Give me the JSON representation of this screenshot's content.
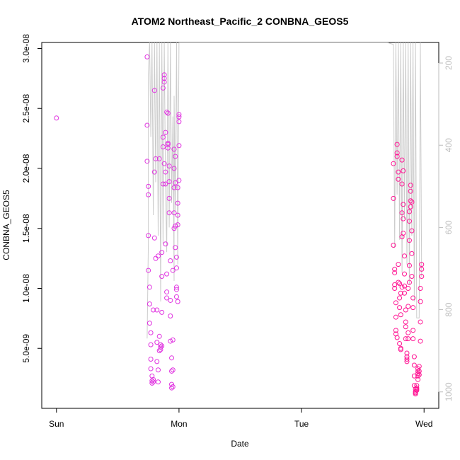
{
  "chart_data": {
    "type": "scatter",
    "title": "ATOM2 Northeast_Pacific_2 CONBNA_GEOS5",
    "xlabel": "Date",
    "ylabel": "CONBNA_GEOS5",
    "x_tick_labels": [
      "Sun",
      "Mon",
      "Tue",
      "Wed"
    ],
    "x_tick_values": [
      0,
      1,
      2,
      3
    ],
    "xlim": [
      -0.12,
      3.12
    ],
    "ylim": [
      0,
      3.05e-08
    ],
    "y_tick_values": [
      5e-09,
      1e-08,
      1.5e-08,
      2e-08,
      2.5e-08,
      3e-08
    ],
    "y_tick_labels": [
      "5.0e-09",
      "1.0e-08",
      "1.5e-08",
      "2.0e-08",
      "2.5e-08",
      "3.0e-08"
    ],
    "right_axis": {
      "label": "",
      "tick_values": [
        200,
        400,
        600,
        800,
        1000
      ],
      "tick_labels": [
        "200",
        "400",
        "600",
        "800",
        "1000"
      ],
      "range_top": 150,
      "range_bottom": 1040,
      "color": "#bdbdbd"
    },
    "grid": false,
    "series": [
      {
        "marker": "open-circle",
        "color_range": [
          "#e033e0",
          "#ff1493"
        ],
        "points": [
          [
            0.0,
            2.42e-08
          ],
          [
            0.74,
            2.93e-08
          ],
          [
            0.74,
            2.36e-08
          ],
          [
            0.74,
            2.06e-08
          ],
          [
            0.75,
            1.85e-08
          ],
          [
            0.75,
            1.78e-08
          ],
          [
            0.75,
            1.44e-08
          ],
          [
            0.75,
            1.15e-08
          ],
          [
            0.76,
            1.01e-08
          ],
          [
            0.76,
            8.7e-09
          ],
          [
            0.76,
            7.1e-09
          ],
          [
            0.77,
            6.3e-09
          ],
          [
            0.77,
            5.3e-09
          ],
          [
            0.77,
            4.1e-09
          ],
          [
            0.77,
            3.3e-09
          ],
          [
            0.78,
            2.7e-09
          ],
          [
            0.78,
            2.3e-09
          ],
          [
            0.78,
            2.1e-09
          ],
          [
            0.79,
            2.2e-09
          ],
          [
            0.79,
            2.4e-09
          ],
          [
            0.79,
            8.2e-09
          ],
          [
            0.8,
            1.42e-08
          ],
          [
            0.8,
            1.97e-08
          ],
          [
            0.8,
            2.65e-08
          ],
          [
            0.81,
            2.08e-08
          ],
          [
            0.81,
            1.25e-08
          ],
          [
            0.82,
            8.2e-09
          ],
          [
            0.82,
            5.5e-09
          ],
          [
            0.82,
            3.9e-09
          ],
          [
            0.83,
            3.2e-09
          ],
          [
            0.83,
            2.2e-09
          ],
          [
            0.83,
            1.27e-08
          ],
          [
            0.84,
            2.08e-08
          ],
          [
            0.84,
            6e-09
          ],
          [
            0.84,
            4.8e-09
          ],
          [
            0.85,
            4.9e-09
          ],
          [
            0.85,
            5.1e-09
          ],
          [
            0.85,
            5.3e-09
          ],
          [
            0.86,
            5.2e-09
          ],
          [
            0.86,
            1.3e-08
          ],
          [
            0.86,
            1.1e-08
          ],
          [
            0.86,
            8e-09
          ],
          [
            0.87,
            1.87e-08
          ],
          [
            0.87,
            2.26e-08
          ],
          [
            0.87,
            2.18e-08
          ],
          [
            0.87,
            2.67e-08
          ],
          [
            0.88,
            2.75e-08
          ],
          [
            0.88,
            2.78e-08
          ],
          [
            0.88,
            2.72e-08
          ],
          [
            0.88,
            2.04e-08
          ],
          [
            0.89,
            2.3e-08
          ],
          [
            0.89,
            1.97e-08
          ],
          [
            0.89,
            1.87e-08
          ],
          [
            0.89,
            1.37e-08
          ],
          [
            0.9,
            1.12e-08
          ],
          [
            0.9,
            9.7e-09
          ],
          [
            0.9,
            9.2e-09
          ],
          [
            0.9,
            2.47e-08
          ],
          [
            0.91,
            2.46e-08
          ],
          [
            0.91,
            2.21e-08
          ],
          [
            0.91,
            2.2e-08
          ],
          [
            0.91,
            2.17e-08
          ],
          [
            0.92,
            2.02e-08
          ],
          [
            0.92,
            1.89e-08
          ],
          [
            0.92,
            1.75e-08
          ],
          [
            0.92,
            1.63e-08
          ],
          [
            0.93,
            1.23e-08
          ],
          [
            0.93,
            9e-09
          ],
          [
            0.93,
            7.7e-09
          ],
          [
            0.93,
            5.6e-09
          ],
          [
            0.94,
            4.2e-09
          ],
          [
            0.94,
            3.1e-09
          ],
          [
            0.94,
            2e-09
          ],
          [
            0.94,
            1.7e-09
          ],
          [
            0.95,
            1.8e-09
          ],
          [
            0.95,
            3.2e-09
          ],
          [
            0.95,
            5.7e-09
          ],
          [
            0.95,
            1.15e-08
          ],
          [
            0.96,
            1.5e-08
          ],
          [
            0.96,
            1.63e-08
          ],
          [
            0.96,
            1.84e-08
          ],
          [
            0.96,
            2e-08
          ],
          [
            0.96,
            2.16e-08
          ],
          [
            0.97,
            2.1e-08
          ],
          [
            0.97,
            1.88e-08
          ],
          [
            0.97,
            1.52e-08
          ],
          [
            0.97,
            1.34e-08
          ],
          [
            0.98,
            1.26e-08
          ],
          [
            0.98,
            1.17e-08
          ],
          [
            0.98,
            1.01e-08
          ],
          [
            0.98,
            9.9e-09
          ],
          [
            0.98,
            9.3e-09
          ],
          [
            0.99,
            8.9e-09
          ],
          [
            0.99,
            1.53e-08
          ],
          [
            0.99,
            1.61e-08
          ],
          [
            0.99,
            1.71e-08
          ],
          [
            0.99,
            1.84e-08
          ],
          [
            1.0,
            1.9e-08
          ],
          [
            1.0,
            2.19e-08
          ],
          [
            1.0,
            2.39e-08
          ],
          [
            1.0,
            2.43e-08
          ],
          [
            1.0,
            2.45e-08
          ],
          [
            2.75,
            2.04e-08
          ],
          [
            2.75,
            1.75e-08
          ],
          [
            2.75,
            1.36e-08
          ],
          [
            2.76,
            1.16e-08
          ],
          [
            2.76,
            1.13e-08
          ],
          [
            2.76,
            1.03e-08
          ],
          [
            2.76,
            1e-08
          ],
          [
            2.77,
            8.8e-09
          ],
          [
            2.77,
            7.6e-09
          ],
          [
            2.77,
            6.5e-09
          ],
          [
            2.77,
            6.2e-09
          ],
          [
            2.78,
            5.9e-09
          ],
          [
            2.78,
            2.2e-08
          ],
          [
            2.78,
            2.13e-08
          ],
          [
            2.78,
            2.1e-08
          ],
          [
            2.79,
            1.97e-08
          ],
          [
            2.79,
            1.91e-08
          ],
          [
            2.79,
            1.2e-08
          ],
          [
            2.79,
            1.05e-08
          ],
          [
            2.8,
            1.04e-08
          ],
          [
            2.8,
            9.2e-09
          ],
          [
            2.8,
            8.4e-09
          ],
          [
            2.8,
            5.4e-09
          ],
          [
            2.81,
            5e-09
          ],
          [
            2.81,
            4.9e-09
          ],
          [
            2.81,
            7.8e-09
          ],
          [
            2.81,
            9.6e-09
          ],
          [
            2.82,
            1.01e-08
          ],
          [
            2.82,
            1.43e-08
          ],
          [
            2.82,
            1.63e-08
          ],
          [
            2.82,
            1.87e-08
          ],
          [
            2.82,
            2.07e-08
          ],
          [
            2.83,
            1.98e-08
          ],
          [
            2.83,
            1.7e-08
          ],
          [
            2.83,
            1.58e-08
          ],
          [
            2.83,
            1.46e-08
          ],
          [
            2.84,
            1.27e-08
          ],
          [
            2.84,
            1.12e-08
          ],
          [
            2.84,
            1.02e-08
          ],
          [
            2.84,
            9.6e-09
          ],
          [
            2.85,
            8.2e-09
          ],
          [
            2.85,
            7.2e-09
          ],
          [
            2.85,
            6.8e-09
          ],
          [
            2.85,
            5.8e-09
          ],
          [
            2.86,
            4.6e-09
          ],
          [
            2.86,
            4.3e-09
          ],
          [
            2.86,
            4.1e-09
          ],
          [
            2.86,
            3.9e-09
          ],
          [
            2.87,
            5.8e-09
          ],
          [
            2.87,
            6.3e-09
          ],
          [
            2.87,
            8.5e-09
          ],
          [
            2.87,
            1e-08
          ],
          [
            2.88,
            1.05e-08
          ],
          [
            2.88,
            1.19e-08
          ],
          [
            2.88,
            1.4e-08
          ],
          [
            2.88,
            1.56e-08
          ],
          [
            2.88,
            1.64e-08
          ],
          [
            2.89,
            1.73e-08
          ],
          [
            2.89,
            1.68e-08
          ],
          [
            2.89,
            1.81e-08
          ],
          [
            2.89,
            1.86e-08
          ],
          [
            2.9,
            1.72e-08
          ],
          [
            2.9,
            1.48e-08
          ],
          [
            2.9,
            1.29e-08
          ],
          [
            2.9,
            1.1e-08
          ],
          [
            2.91,
            9.2e-09
          ],
          [
            2.91,
            8.4e-09
          ],
          [
            2.91,
            6.5e-09
          ],
          [
            2.91,
            5.8e-09
          ],
          [
            2.92,
            4.3e-09
          ],
          [
            2.92,
            3.6e-09
          ],
          [
            2.92,
            2.7e-09
          ],
          [
            2.92,
            1.9e-09
          ],
          [
            2.93,
            1.6e-09
          ],
          [
            2.93,
            1.3e-09
          ],
          [
            2.93,
            1.2e-09
          ],
          [
            2.93,
            1.4e-09
          ],
          [
            2.94,
            1.5e-09
          ],
          [
            2.94,
            1.6e-09
          ],
          [
            2.94,
            1.7e-09
          ],
          [
            2.94,
            1.9e-09
          ],
          [
            2.95,
            2.4e-09
          ],
          [
            2.95,
            2.7e-09
          ],
          [
            2.95,
            2.9e-09
          ],
          [
            2.95,
            3.1e-09
          ],
          [
            2.95,
            3.3e-09
          ],
          [
            2.96,
            3.5e-09
          ],
          [
            2.96,
            3.1e-09
          ],
          [
            2.96,
            2.8e-09
          ],
          [
            2.97,
            5.6e-09
          ],
          [
            2.97,
            7.2e-09
          ],
          [
            2.97,
            8.9e-09
          ],
          [
            2.97,
            1e-08
          ],
          [
            2.98,
            1.1e-08
          ],
          [
            2.98,
            1.16e-08
          ],
          [
            2.98,
            1.2e-08
          ]
        ]
      },
      {
        "name": "",
        "axis": "right",
        "style": "line",
        "color": "#cccccc",
        "points": [
          [
            0.74,
            870
          ],
          [
            0.75,
            640
          ],
          [
            0.75,
            230
          ],
          [
            0.76,
            150
          ],
          [
            0.77,
            380
          ],
          [
            0.78,
            150
          ],
          [
            0.79,
            570
          ],
          [
            0.8,
            150
          ],
          [
            0.81,
            490
          ],
          [
            0.82,
            150
          ],
          [
            0.83,
            620
          ],
          [
            0.84,
            150
          ],
          [
            0.85,
            780
          ],
          [
            0.86,
            150
          ],
          [
            0.87,
            640
          ],
          [
            0.88,
            150
          ],
          [
            0.89,
            500
          ],
          [
            0.9,
            660
          ],
          [
            0.91,
            150
          ],
          [
            0.92,
            600
          ],
          [
            0.93,
            150
          ],
          [
            0.94,
            540
          ],
          [
            0.95,
            330
          ],
          [
            0.96,
            730
          ],
          [
            0.96,
            280
          ],
          [
            0.97,
            560
          ],
          [
            0.98,
            150
          ],
          [
            0.99,
            690
          ],
          [
            1.0,
            150
          ],
          [
            1.0,
            150
          ],
          [
            2.7,
            150
          ],
          [
            2.75,
            155
          ],
          [
            2.76,
            650
          ],
          [
            2.77,
            150
          ],
          [
            2.78,
            520
          ],
          [
            2.79,
            150
          ],
          [
            2.8,
            630
          ],
          [
            2.81,
            150
          ],
          [
            2.82,
            710
          ],
          [
            2.83,
            150
          ],
          [
            2.84,
            580
          ],
          [
            2.85,
            150
          ],
          [
            2.86,
            690
          ],
          [
            2.87,
            150
          ],
          [
            2.88,
            740
          ],
          [
            2.89,
            150
          ],
          [
            2.9,
            620
          ],
          [
            2.91,
            150
          ],
          [
            2.92,
            780
          ],
          [
            2.93,
            150
          ],
          [
            2.94,
            820
          ],
          [
            2.96,
            820
          ],
          [
            2.97,
            150
          ],
          [
            2.98,
            720
          ]
        ]
      }
    ]
  }
}
